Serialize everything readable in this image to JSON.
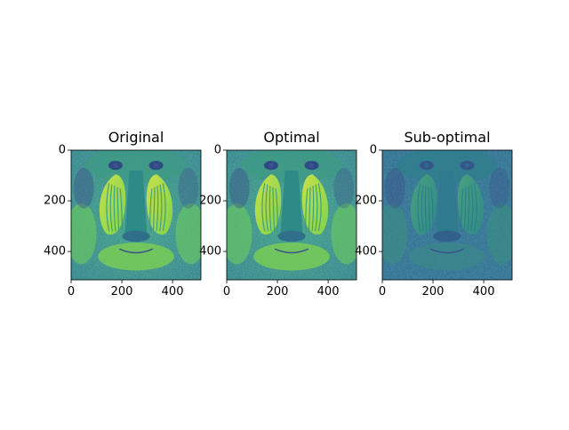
{
  "panels": [
    {
      "title": "Original",
      "variant": "original"
    },
    {
      "title": "Optimal",
      "variant": "optimal"
    },
    {
      "title": "Sub-optimal",
      "variant": "suboptimal"
    }
  ],
  "axes": {
    "xticks": [
      "0",
      "200",
      "400"
    ],
    "yticks": [
      "0",
      "200",
      "400"
    ],
    "xtick_values": [
      0,
      200,
      400
    ],
    "ytick_values": [
      0,
      200,
      400
    ],
    "extent": [
      0,
      512
    ]
  },
  "colormap": [
    "#440154",
    "#3b528b",
    "#21918c",
    "#5ec962",
    "#fde725"
  ]
}
